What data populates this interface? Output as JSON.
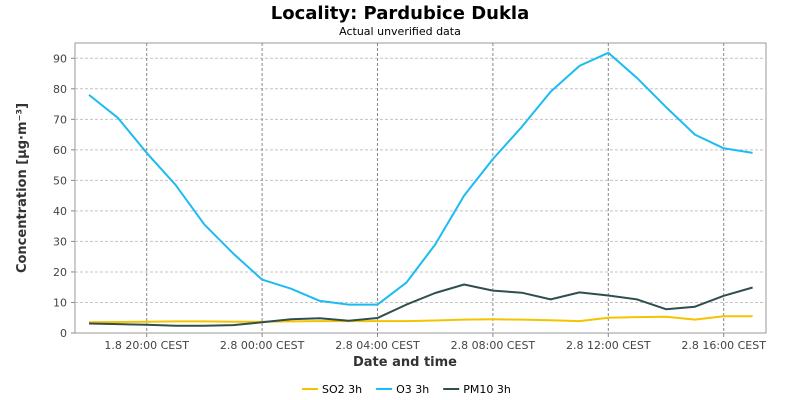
{
  "chart_data": {
    "type": "line",
    "title": "Locality: Pardubice Dukla",
    "subtitle": "Actual unverified data",
    "xlabel": "Date and time",
    "ylabel": "Concentration [µg·m⁻³]",
    "ylim": [
      0,
      95
    ],
    "yticks": [
      0,
      10,
      20,
      30,
      40,
      50,
      60,
      70,
      80,
      90
    ],
    "x_hours": [
      0,
      1,
      2,
      3,
      4,
      5,
      6,
      7,
      8,
      9,
      10,
      11,
      12,
      13,
      14,
      15,
      16,
      17,
      18,
      19,
      20,
      21,
      22,
      23
    ],
    "x_tick_labels": [
      {
        "hour": 2,
        "label": "1.8 20:00 CEST"
      },
      {
        "hour": 6,
        "label": "2.8 00:00 CEST"
      },
      {
        "hour": 10,
        "label": "2.8 04:00 CEST"
      },
      {
        "hour": 14,
        "label": "2.8 08:00 CEST"
      },
      {
        "hour": 18,
        "label": "2.8 12:00 CEST"
      },
      {
        "hour": 22,
        "label": "2.8 16:00 CEST"
      }
    ],
    "grid": true,
    "legend_position": "bottom",
    "series": [
      {
        "name": "SO2 3h",
        "color": "#f5c400",
        "values": [
          3.5,
          3.6,
          3.7,
          3.8,
          3.8,
          3.7,
          3.7,
          3.8,
          3.9,
          3.9,
          3.9,
          3.9,
          4.1,
          4.4,
          4.5,
          4.4,
          4.2,
          3.9,
          5.0,
          5.2,
          5.3,
          4.4,
          5.5,
          5.5
        ]
      },
      {
        "name": "O3 3h",
        "color": "#1cbcf2",
        "values": [
          78,
          70.5,
          59,
          48.5,
          35.5,
          26,
          17.5,
          14.5,
          10.5,
          9.3,
          9.3,
          16.5,
          29,
          45,
          57,
          67.5,
          79,
          87.5,
          91.8,
          83.5,
          74,
          65,
          60.5,
          59
        ]
      },
      {
        "name": "PM10 3h",
        "color": "#2f4f4f",
        "values": [
          3.1,
          2.9,
          2.7,
          2.4,
          2.4,
          2.6,
          3.5,
          4.5,
          4.8,
          4.0,
          4.9,
          9.3,
          13.1,
          15.9,
          13.9,
          13.2,
          11.0,
          13.3,
          12.3,
          11.0,
          7.8,
          8.6,
          12.2,
          14.9
        ]
      }
    ]
  }
}
